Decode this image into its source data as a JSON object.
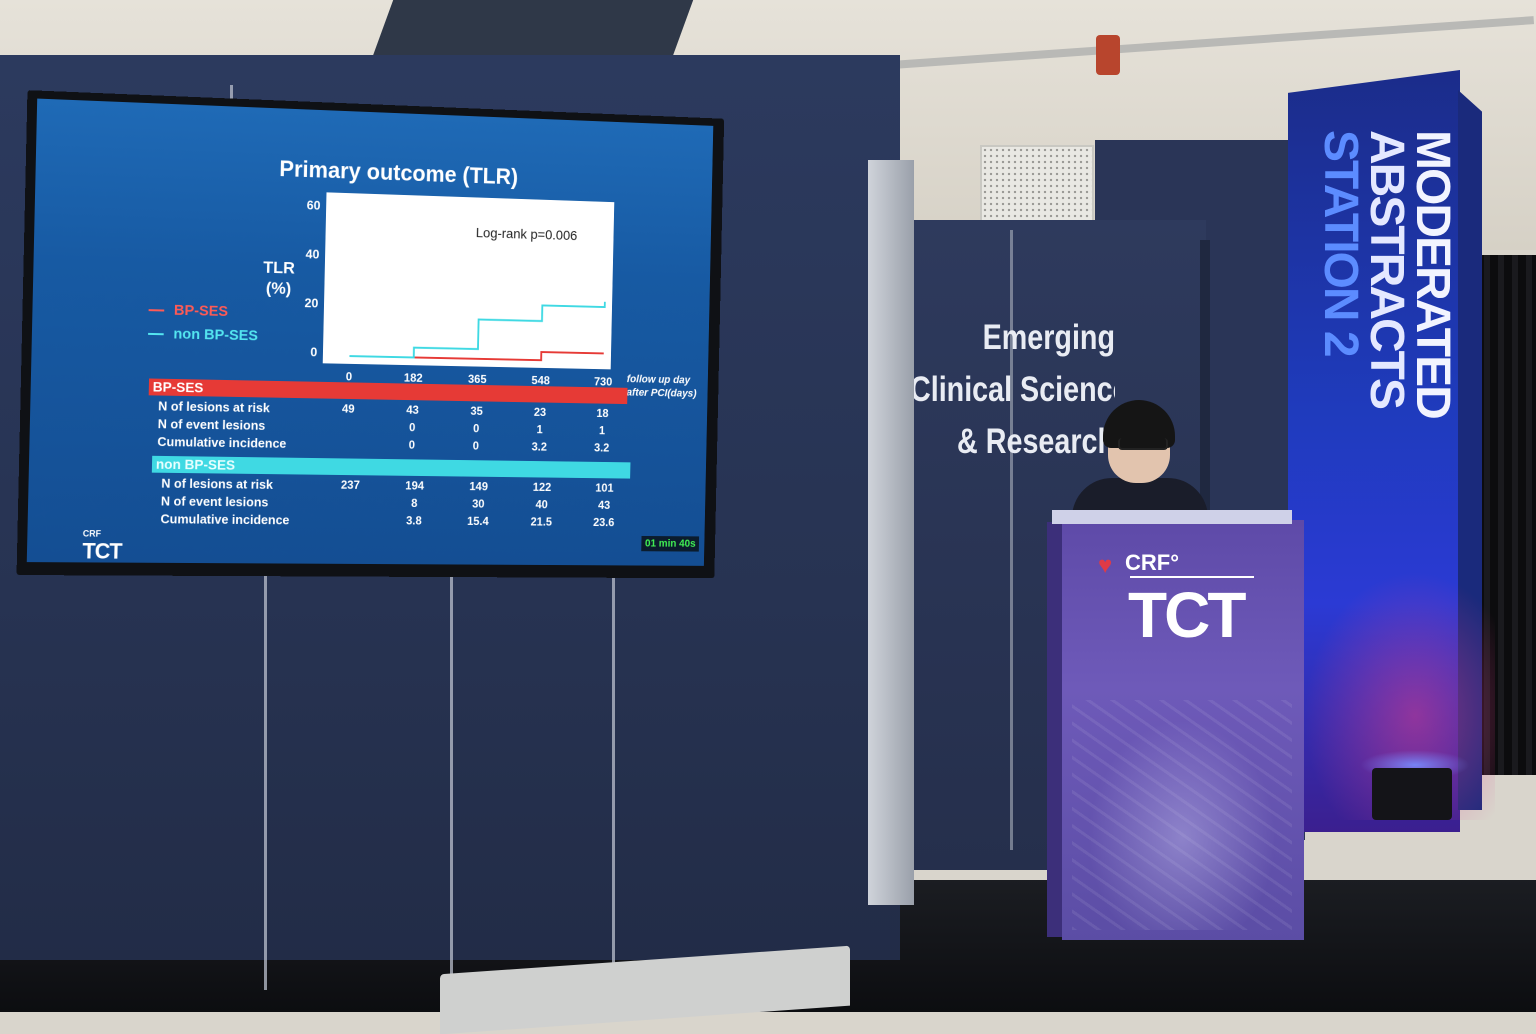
{
  "slide": {
    "title": "Primary outcome (TLR)",
    "annotation": "Log-rank p=0.006",
    "y_label_line1": "TLR",
    "y_label_line2": "(%)",
    "x_label_line1": "follow up day",
    "x_label_line2": "after PCI(days)",
    "legend": [
      {
        "label": "BP-SES",
        "color": "#e63a36"
      },
      {
        "label": "non BP-SES",
        "color": "#3fd9e3"
      }
    ],
    "bp_band": "BP-SES",
    "nonbp_band": "non BP-SES",
    "row_labels": [
      "N of lesions at risk",
      "N of event lesions",
      "Cumulative incidence"
    ],
    "timer": "01 min 40s",
    "logo_top": "CRF",
    "logo_main": "TCT"
  },
  "chart_data": {
    "type": "line",
    "title": "Primary outcome (TLR)",
    "ylabel": "TLR (%)",
    "xlabel": "follow up day after PCI(days)",
    "ylim": [
      0,
      60
    ],
    "yticks": [
      "60",
      "40",
      "20",
      "0"
    ],
    "xlim": [
      0,
      730
    ],
    "xticks": [
      "0",
      "182",
      "365",
      "548",
      "730"
    ],
    "series": [
      {
        "name": "BP-SES",
        "color": "#e63a36",
        "x": [
          0,
          182,
          365,
          548,
          730
        ],
        "y": [
          0,
          0,
          0,
          3.2,
          3.2
        ]
      },
      {
        "name": "non BP-SES",
        "color": "#3fd9e3",
        "x": [
          0,
          182,
          365,
          548,
          730
        ],
        "y": [
          0,
          3.8,
          15.4,
          21.5,
          23.6
        ]
      }
    ],
    "table": {
      "bp": {
        "at_risk": [
          "49",
          "43",
          "35",
          "23",
          "18"
        ],
        "events": [
          "",
          "0",
          "0",
          "1",
          "1"
        ],
        "cumulative": [
          "",
          "0",
          "0",
          "3.2",
          "3.2"
        ]
      },
      "nonbp": {
        "at_risk": [
          "237",
          "194",
          "149",
          "122",
          "101"
        ],
        "events": [
          "",
          "8",
          "30",
          "40",
          "43"
        ],
        "cumulative": [
          "",
          "3.8",
          "15.4",
          "21.5",
          "23.6"
        ]
      }
    }
  },
  "booth": {
    "heading_line1": "Emerging",
    "heading_line2": "Clinical Science",
    "heading_line3": "& Research"
  },
  "tower": {
    "line1": "MODERATED",
    "line2": "ABSTRACTS",
    "line3": "STATION 2"
  },
  "podium": {
    "logo_top": "CRF°",
    "logo_main": "TCT"
  }
}
